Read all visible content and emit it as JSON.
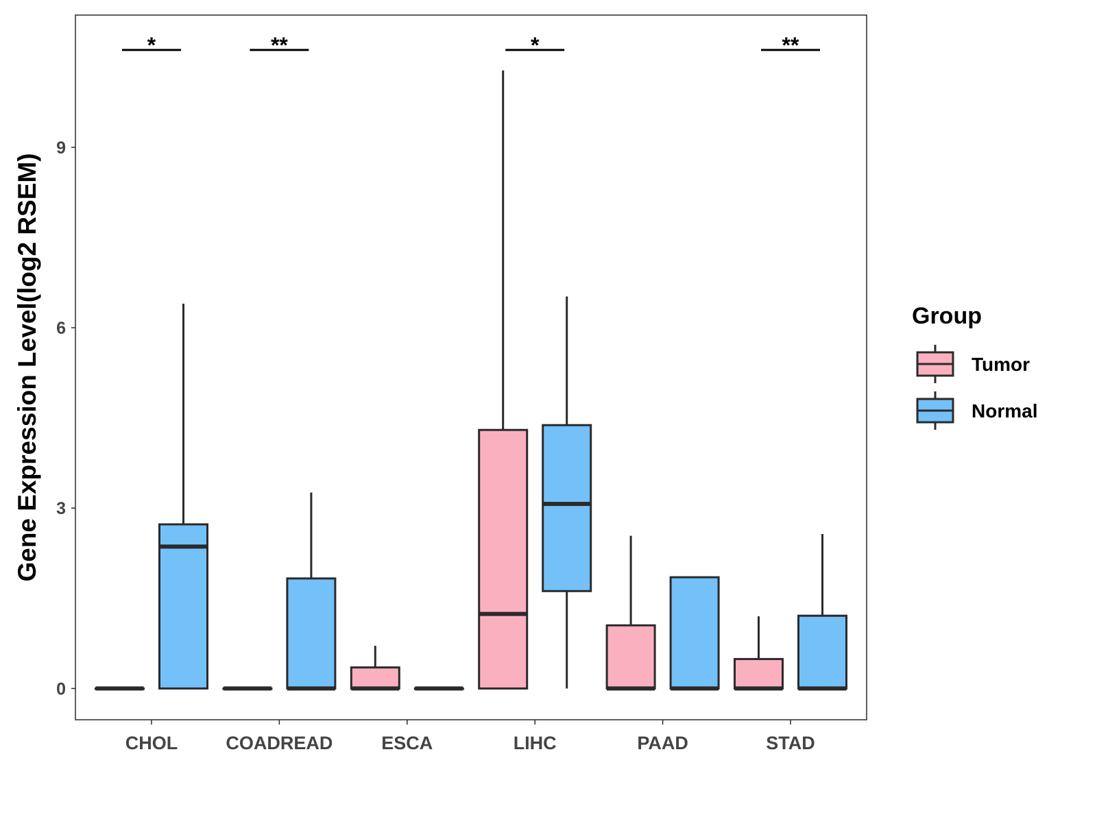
{
  "chart_data": {
    "type": "box",
    "title": "",
    "xlabel": "",
    "ylabel": "Gene Expression Level(log2 RSEM)",
    "ylim": [
      -0.52,
      11.2
    ],
    "yticks": [
      0,
      3,
      6,
      9
    ],
    "grid": false,
    "categories": [
      "CHOL",
      "COADREAD",
      "ESCA",
      "LIHC",
      "PAAD",
      "STAD"
    ],
    "legend": {
      "title": "Group",
      "position": "right",
      "entries": [
        "Tumor",
        "Normal"
      ]
    },
    "colors": {
      "Tumor": "#FBB0C0",
      "Normal": "#74C0F8",
      "stroke": "#2a2a2a"
    },
    "series": [
      {
        "name": "Tumor",
        "boxes": [
          {
            "min": 0,
            "q1": 0,
            "median": 0,
            "q3": 0,
            "max": 0
          },
          {
            "min": 0,
            "q1": 0,
            "median": 0,
            "q3": 0,
            "max": 0
          },
          {
            "min": 0,
            "q1": 0,
            "median": 0,
            "q3": 0.35,
            "max": 0.71
          },
          {
            "min": 0,
            "q1": 0,
            "median": 1.24,
            "q3": 4.3,
            "max": 10.28
          },
          {
            "min": 0,
            "q1": 0,
            "median": 0,
            "q3": 1.05,
            "max": 2.54
          },
          {
            "min": 0,
            "q1": 0,
            "median": 0,
            "q3": 0.49,
            "max": 1.2
          }
        ]
      },
      {
        "name": "Normal",
        "boxes": [
          {
            "min": 0,
            "q1": 0,
            "median": 2.36,
            "q3": 2.73,
            "max": 6.4
          },
          {
            "min": 0,
            "q1": 0,
            "median": 0,
            "q3": 1.83,
            "max": 3.26
          },
          {
            "min": 0,
            "q1": 0,
            "median": 0,
            "q3": 0,
            "max": 0
          },
          {
            "min": 0,
            "q1": 1.62,
            "median": 3.07,
            "q3": 4.38,
            "max": 6.52
          },
          {
            "min": 0,
            "q1": 0,
            "median": 0,
            "q3": 1.85,
            "max": 1.85
          },
          {
            "min": 0,
            "q1": 0,
            "median": 0,
            "q3": 1.21,
            "max": 2.57
          }
        ]
      }
    ],
    "annotations": [
      {
        "category": "CHOL",
        "label": "*",
        "y": 10.62
      },
      {
        "category": "COADREAD",
        "label": "**",
        "y": 10.62
      },
      {
        "category": "LIHC",
        "label": "*",
        "y": 10.62
      },
      {
        "category": "STAD",
        "label": "**",
        "y": 10.62
      }
    ]
  }
}
